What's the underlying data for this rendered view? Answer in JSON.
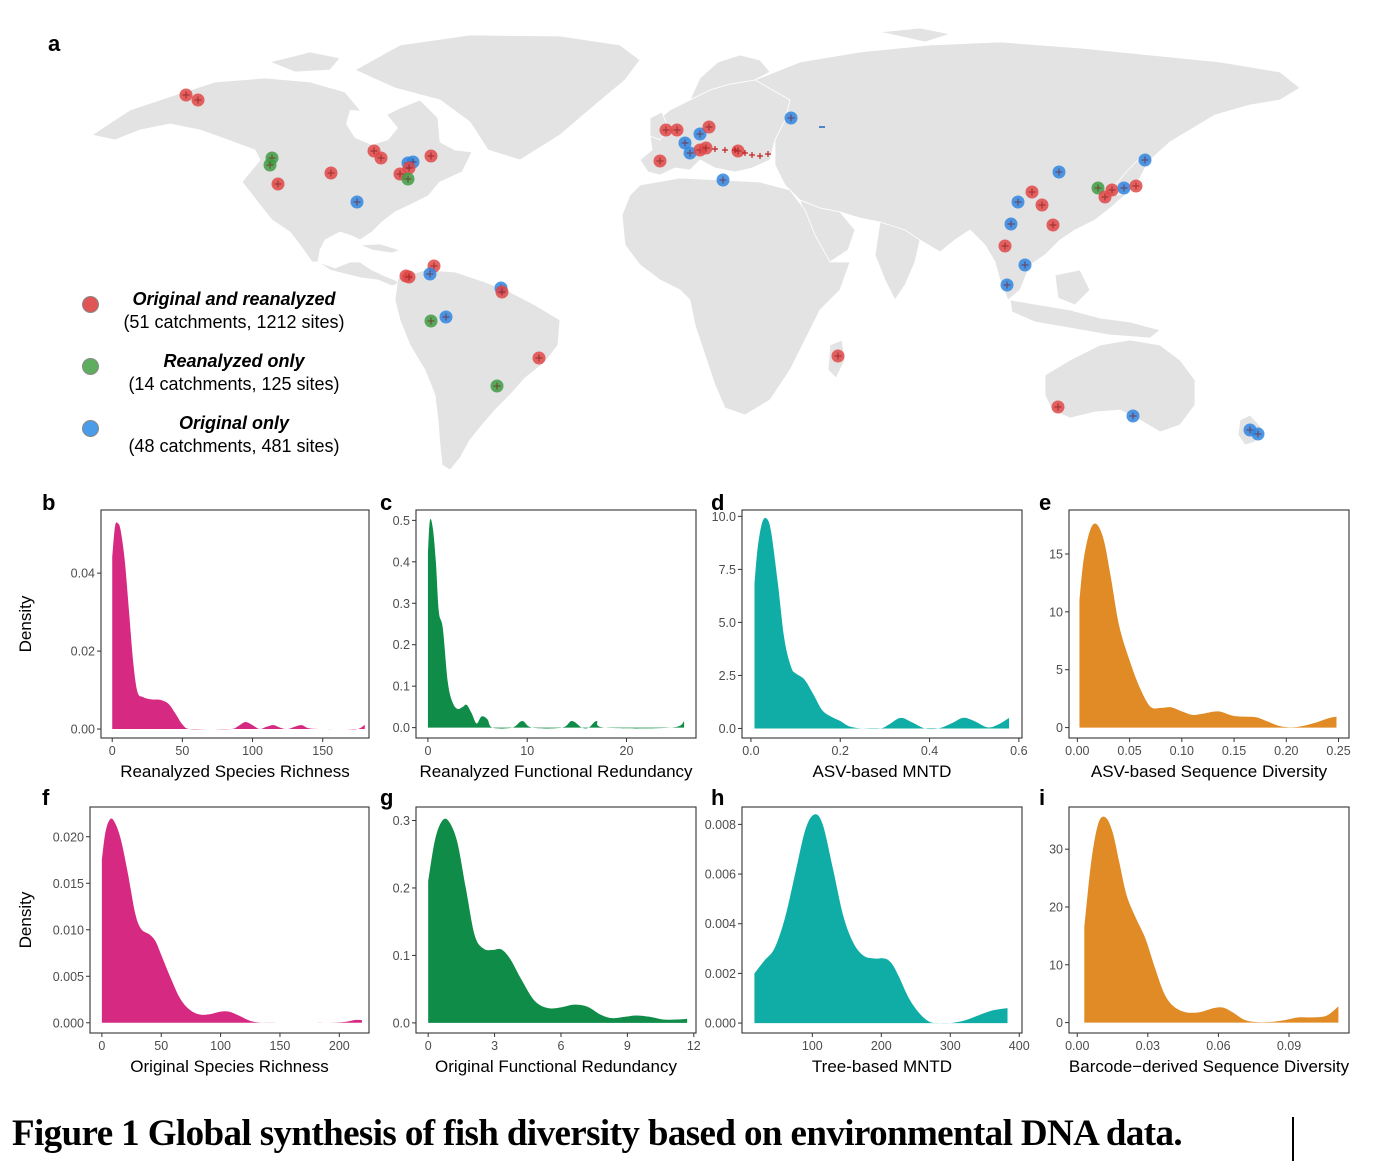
{
  "figure": {
    "caption": "Figure 1 Global synthesis of fish diversity based on environmental DNA data.",
    "panel_letters": [
      "a",
      "b",
      "c",
      "d",
      "e",
      "f",
      "g",
      "h",
      "i"
    ]
  },
  "map": {
    "land_color": "#e3e3e3",
    "legend": [
      {
        "title": "Original and reanalyzed",
        "detail": "(51 catchments, 1212 sites)",
        "color": "#e05555"
      },
      {
        "title": "Reanalyzed only",
        "detail": "(14 catchments, 125 sites)",
        "color": "#4aa04e"
      },
      {
        "title": "Original only",
        "detail": "(48 catchments, 481 sites)",
        "color": "#3b8fe0"
      }
    ],
    "marker_colors": {
      "both": "#e04848",
      "reanalyzed": "#3f9c45",
      "original": "#2f86e0"
    }
  },
  "chart_data": [
    {
      "id": "b",
      "type": "area",
      "fill": "#d62a82",
      "xlabel": "Reanalyzed Species Richness",
      "ylabel": "Density",
      "xlim": [
        -8,
        183
      ],
      "ylim": [
        -0.0023,
        0.0562
      ],
      "xticks": [
        0,
        50,
        100,
        150
      ],
      "xtick_labels": [
        "0",
        "50",
        "100",
        "150"
      ],
      "yticks": [
        0,
        0.02,
        0.04
      ],
      "ytick_labels": [
        "0.00",
        "0.02",
        "0.04"
      ],
      "x": [
        0,
        2,
        4,
        6,
        9,
        12,
        15,
        18,
        22,
        28,
        34,
        40,
        45,
        50,
        55,
        70,
        85,
        90,
        95,
        100,
        105,
        110,
        115,
        120,
        125,
        130,
        135,
        140,
        150,
        165,
        175,
        180
      ],
      "y": [
        0.044,
        0.052,
        0.0528,
        0.051,
        0.043,
        0.03,
        0.017,
        0.0095,
        0.0082,
        0.0076,
        0.0075,
        0.0065,
        0.004,
        0.0012,
        0.0,
        0.0,
        0.0,
        0.0008,
        0.0018,
        0.001,
        0.0,
        0.0006,
        0.001,
        0.0003,
        0.0,
        0.0006,
        0.001,
        0.0002,
        0.0,
        0.0,
        0.0,
        0.0011
      ]
    },
    {
      "id": "c",
      "type": "area",
      "fill": "#0f8c47",
      "xlabel": "Reanalyzed Functional Redundancy",
      "ylabel": "",
      "xlim": [
        -1.2,
        27
      ],
      "ylim": [
        -0.025,
        0.525
      ],
      "xticks": [
        0,
        10,
        20
      ],
      "xtick_labels": [
        "0",
        "10",
        "20"
      ],
      "yticks": [
        0,
        0.1,
        0.2,
        0.3,
        0.4,
        0.5
      ],
      "ytick_labels": [
        "0.0",
        "0.1",
        "0.2",
        "0.3",
        "0.4",
        "0.5"
      ],
      "x": [
        0,
        0.2,
        0.5,
        0.8,
        1.1,
        1.5,
        2.0,
        2.5,
        3.0,
        3.5,
        3.9,
        4.4,
        4.9,
        5.4,
        6.0,
        6.5,
        8.5,
        9.5,
        10.5,
        13.5,
        14.5,
        15.5,
        16.2,
        17.0,
        17.8,
        24.5,
        25.8
      ],
      "y": [
        0.42,
        0.5,
        0.48,
        0.4,
        0.28,
        0.24,
        0.11,
        0.06,
        0.045,
        0.05,
        0.055,
        0.035,
        0.01,
        0.027,
        0.02,
        0.0,
        0.0,
        0.016,
        0.0,
        0.0,
        0.016,
        0.0,
        0.0,
        0.016,
        0.0,
        0.0,
        0.015
      ]
    },
    {
      "id": "d",
      "type": "area",
      "fill": "#0fada6",
      "xlabel": "ASV-based MNTD",
      "ylabel": "",
      "xlim": [
        -0.02,
        0.607
      ],
      "ylim": [
        -0.45,
        10.3
      ],
      "xticks": [
        0,
        0.2,
        0.4,
        0.6
      ],
      "xtick_labels": [
        "0.0",
        "0.2",
        "0.4",
        "0.6"
      ],
      "yticks": [
        0,
        2.5,
        5,
        7.5,
        10
      ],
      "ytick_labels": [
        "0.0",
        "2.5",
        "5.0",
        "7.5",
        "10.0"
      ],
      "x": [
        0.008,
        0.015,
        0.025,
        0.035,
        0.045,
        0.06,
        0.075,
        0.09,
        0.1,
        0.12,
        0.14,
        0.16,
        0.18,
        0.2,
        0.22,
        0.25,
        0.29,
        0.31,
        0.335,
        0.36,
        0.39,
        0.42,
        0.45,
        0.475,
        0.5,
        0.53,
        0.555,
        0.578
      ],
      "y": [
        6.8,
        8.5,
        9.7,
        9.9,
        9.3,
        6.9,
        4.2,
        2.9,
        2.6,
        2.3,
        1.6,
        0.85,
        0.55,
        0.35,
        0.1,
        0.0,
        0.0,
        0.2,
        0.5,
        0.3,
        0.0,
        0.0,
        0.25,
        0.5,
        0.35,
        0.05,
        0.2,
        0.5
      ]
    },
    {
      "id": "e",
      "type": "area",
      "fill": "#e08b25",
      "xlabel": "ASV-based Sequence Diversity",
      "ylabel": "",
      "xlim": [
        -0.008,
        0.26
      ],
      "ylim": [
        -0.9,
        18.8
      ],
      "xticks": [
        0,
        0.05,
        0.1,
        0.15,
        0.2,
        0.25
      ],
      "xtick_labels": [
        "0.00",
        "0.05",
        "0.10",
        "0.15",
        "0.20",
        "0.25"
      ],
      "yticks": [
        0,
        5,
        10,
        15
      ],
      "ytick_labels": [
        "0",
        "5",
        "10",
        "15"
      ],
      "x": [
        0.002,
        0.006,
        0.012,
        0.018,
        0.025,
        0.032,
        0.04,
        0.05,
        0.06,
        0.07,
        0.08,
        0.09,
        0.1,
        0.11,
        0.12,
        0.135,
        0.15,
        0.17,
        0.18,
        0.195,
        0.21,
        0.225,
        0.24,
        0.248
      ],
      "y": [
        11.0,
        14.5,
        17.0,
        17.6,
        16.3,
        13.0,
        8.8,
        5.8,
        3.4,
        1.8,
        1.7,
        1.75,
        1.4,
        1.1,
        1.2,
        1.4,
        1.0,
        0.9,
        0.6,
        0.1,
        0.05,
        0.35,
        0.8,
        0.95
      ]
    },
    {
      "id": "f",
      "type": "area",
      "fill": "#d62a82",
      "xlabel": "Original Species Richness",
      "ylabel": "Density",
      "xlim": [
        -10,
        225
      ],
      "ylim": [
        -0.0011,
        0.0232
      ],
      "xticks": [
        0,
        50,
        100,
        150,
        200
      ],
      "xtick_labels": [
        "0",
        "50",
        "100",
        "150",
        "200"
      ],
      "yticks": [
        0,
        0.005,
        0.01,
        0.015,
        0.02
      ],
      "ytick_labels": [
        "0.000",
        "0.005",
        "0.010",
        "0.015",
        "0.020"
      ],
      "x": [
        0,
        3,
        7,
        11,
        16,
        22,
        28,
        33,
        40,
        45,
        50,
        58,
        66,
        74,
        82,
        90,
        100,
        107,
        115,
        125,
        135,
        150,
        170,
        190,
        205,
        213,
        219
      ],
      "y": [
        0.0175,
        0.0205,
        0.0219,
        0.0215,
        0.0197,
        0.016,
        0.0118,
        0.0101,
        0.0095,
        0.0088,
        0.0073,
        0.0048,
        0.0026,
        0.0014,
        0.0009,
        0.0009,
        0.0012,
        0.0012,
        0.0008,
        0.0002,
        0.0,
        0.0,
        0.0,
        0.0,
        0.0001,
        0.0003,
        0.0003
      ]
    },
    {
      "id": "g",
      "type": "area",
      "fill": "#0f8c47",
      "xlabel": "Original Functional Redundancy",
      "ylabel": "",
      "xlim": [
        -0.55,
        12.1
      ],
      "ylim": [
        -0.015,
        0.32
      ],
      "xticks": [
        0,
        3,
        6,
        9,
        12
      ],
      "xtick_labels": [
        "0",
        "3",
        "6",
        "9",
        "12"
      ],
      "yticks": [
        0,
        0.1,
        0.2,
        0.3
      ],
      "ytick_labels": [
        "0.0",
        "0.1",
        "0.2",
        "0.3"
      ],
      "x": [
        0,
        0.3,
        0.6,
        0.9,
        1.3,
        1.7,
        2.1,
        2.5,
        2.9,
        3.3,
        3.7,
        4.2,
        4.8,
        5.4,
        6.0,
        6.6,
        7.2,
        7.8,
        8.3,
        8.9,
        9.4,
        10.0,
        10.6,
        11.2,
        11.7
      ],
      "y": [
        0.21,
        0.27,
        0.298,
        0.3,
        0.27,
        0.2,
        0.13,
        0.11,
        0.108,
        0.109,
        0.095,
        0.065,
        0.033,
        0.022,
        0.023,
        0.027,
        0.024,
        0.012,
        0.007,
        0.009,
        0.011,
        0.009,
        0.005,
        0.005,
        0.006
      ]
    },
    {
      "id": "h",
      "type": "area",
      "fill": "#0fada6",
      "xlabel": "Tree-based MNTD",
      "ylabel": "",
      "xlim": [
        -2,
        404
      ],
      "ylim": [
        -0.0004,
        0.0087
      ],
      "xticks": [
        100,
        200,
        300,
        400
      ],
      "xtick_labels": [
        "100",
        "200",
        "300",
        "400"
      ],
      "yticks": [
        0,
        0.002,
        0.004,
        0.006,
        0.008
      ],
      "ytick_labels": [
        "0.000",
        "0.002",
        "0.004",
        "0.006",
        "0.008"
      ],
      "x": [
        16,
        30,
        45,
        60,
        75,
        90,
        103,
        115,
        130,
        145,
        160,
        175,
        190,
        205,
        215,
        225,
        240,
        255,
        270,
        285,
        300,
        320,
        340,
        360,
        383
      ],
      "y": [
        0.002,
        0.0025,
        0.003,
        0.0042,
        0.006,
        0.0078,
        0.0084,
        0.008,
        0.0062,
        0.0043,
        0.0032,
        0.0027,
        0.0026,
        0.0026,
        0.0024,
        0.0019,
        0.001,
        0.0004,
        5e-05,
        0.0,
        0.0,
        0.0001,
        0.0003,
        0.0005,
        0.0006
      ]
    },
    {
      "id": "i",
      "type": "area",
      "fill": "#e08b25",
      "xlabel": "Barcode−derived Sequence Diversity",
      "ylabel": "",
      "xlim": [
        -0.0035,
        0.1155
      ],
      "ylim": [
        -1.8,
        37.3
      ],
      "xticks": [
        0,
        0.03,
        0.06,
        0.09
      ],
      "xtick_labels": [
        "0.00",
        "0.03",
        "0.06",
        "0.09"
      ],
      "yticks": [
        0,
        10,
        20,
        30
      ],
      "ytick_labels": [
        "0",
        "10",
        "20",
        "30"
      ],
      "x": [
        0.003,
        0.006,
        0.009,
        0.012,
        0.015,
        0.018,
        0.021,
        0.025,
        0.029,
        0.033,
        0.037,
        0.041,
        0.046,
        0.052,
        0.058,
        0.062,
        0.066,
        0.071,
        0.076,
        0.082,
        0.088,
        0.094,
        0.1,
        0.106,
        0.111
      ],
      "y": [
        16.5,
        28.0,
        34.5,
        35.5,
        33.0,
        27.5,
        22.0,
        18.0,
        14.5,
        9.5,
        5.0,
        2.8,
        1.8,
        1.8,
        2.5,
        2.6,
        1.8,
        0.5,
        0.1,
        0.1,
        0.4,
        0.9,
        0.9,
        1.2,
        2.8
      ]
    }
  ]
}
